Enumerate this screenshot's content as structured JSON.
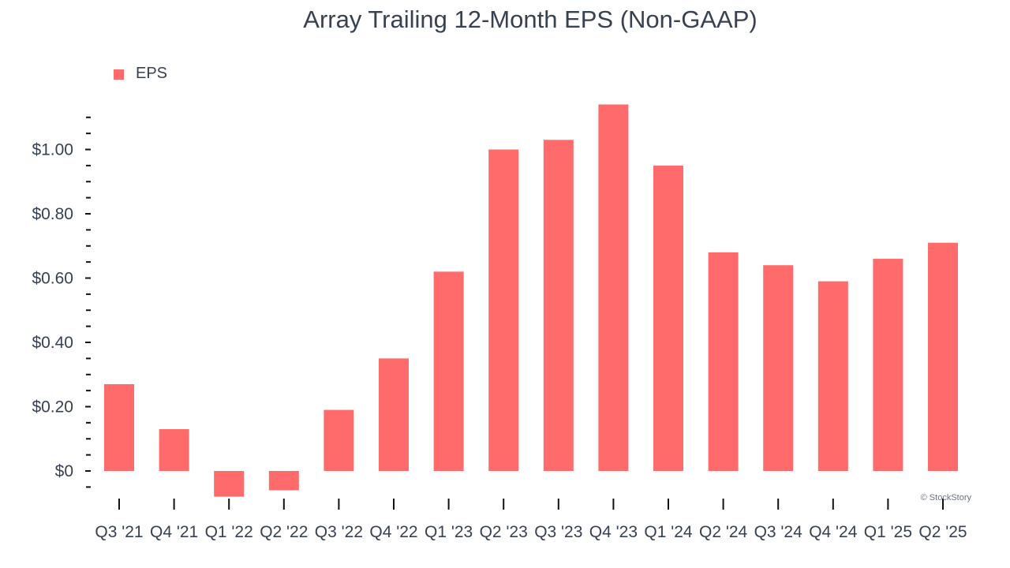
{
  "chart_data": {
    "type": "bar",
    "title": "Array Trailing 12-Month EPS (Non-GAAP)",
    "xlabel": "",
    "ylabel": "",
    "categories": [
      "Q3 '21",
      "Q4 '21",
      "Q1 '22",
      "Q2 '22",
      "Q3 '22",
      "Q4 '22",
      "Q1 '23",
      "Q2 '23",
      "Q3 '23",
      "Q4 '23",
      "Q1 '24",
      "Q2 '24",
      "Q3 '24",
      "Q4 '24",
      "Q1 '25",
      "Q2 '25"
    ],
    "series": [
      {
        "name": "EPS",
        "color": "#ff6b6b",
        "values": [
          0.27,
          0.13,
          -0.08,
          -0.06,
          0.19,
          0.35,
          0.62,
          1.0,
          1.03,
          1.14,
          0.95,
          0.68,
          0.64,
          0.59,
          0.66,
          0.71
        ]
      }
    ],
    "ylim": [
      -0.08,
      1.14
    ],
    "y_ticks": [
      0,
      0.2,
      0.4,
      0.6,
      0.8,
      1.0
    ],
    "y_tick_labels": [
      "$0",
      "$0.20",
      "$0.40",
      "$0.60",
      "$0.80",
      "$1.00"
    ],
    "grid": false,
    "legend_position": "top-left"
  },
  "credit": "© StockStory"
}
